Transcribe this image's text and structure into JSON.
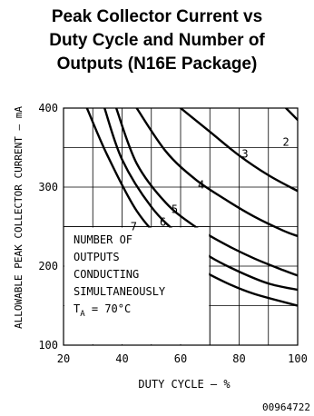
{
  "chart_data": {
    "type": "line",
    "title_lines": [
      "Peak Collector Current vs",
      "Duty Cycle and Number of",
      "Outputs (N16E Package)"
    ],
    "xlabel": "DUTY CYCLE – %",
    "ylabel": "ALLOWABLE PEAK COLLECTOR CURRENT – mA",
    "xlim": [
      20,
      100
    ],
    "ylim": [
      100,
      400
    ],
    "x_ticks": [
      20,
      40,
      60,
      80,
      100
    ],
    "y_ticks": [
      100,
      200,
      300,
      400
    ],
    "grid": true,
    "series": [
      {
        "name": "2",
        "x": [
          96,
          100
        ],
        "y": [
          400,
          385
        ]
      },
      {
        "name": "3",
        "x": [
          60,
          70,
          80,
          90,
          100
        ],
        "y": [
          400,
          370,
          340,
          315,
          295
        ]
      },
      {
        "name": "4",
        "x": [
          45,
          55,
          65,
          75,
          85,
          95,
          100
        ],
        "y": [
          400,
          345,
          310,
          285,
          263,
          245,
          238
        ]
      },
      {
        "name": "5",
        "x": [
          38,
          45,
          55,
          65,
          75,
          85,
          95,
          100
        ],
        "y": [
          400,
          330,
          280,
          250,
          228,
          210,
          195,
          188
        ]
      },
      {
        "name": "6",
        "x": [
          34,
          40,
          50,
          60,
          70,
          80,
          90,
          100
        ],
        "y": [
          400,
          335,
          275,
          238,
          212,
          193,
          178,
          170
        ]
      },
      {
        "name": "7",
        "x": [
          28,
          35,
          45,
          55,
          65,
          75,
          85,
          100
        ],
        "y": [
          400,
          340,
          270,
          228,
          200,
          180,
          165,
          150
        ]
      }
    ],
    "curve_labels": [
      {
        "text": "2",
        "x": 96,
        "y": 357
      },
      {
        "text": "3",
        "x": 82,
        "y": 342
      },
      {
        "text": "4",
        "x": 67,
        "y": 303
      },
      {
        "text": "5",
        "x": 58,
        "y": 272
      },
      {
        "text": "6",
        "x": 54,
        "y": 256
      },
      {
        "text": "7",
        "x": 44,
        "y": 250
      }
    ],
    "annotation": {
      "lines": [
        "NUMBER OF",
        "OUTPUTS",
        "CONDUCTING",
        "SIMULTANEOUSLY"
      ],
      "temp_prefix": "T",
      "temp_sub": "A",
      "temp_value": " = 70°C"
    },
    "footnote": "00964722"
  }
}
